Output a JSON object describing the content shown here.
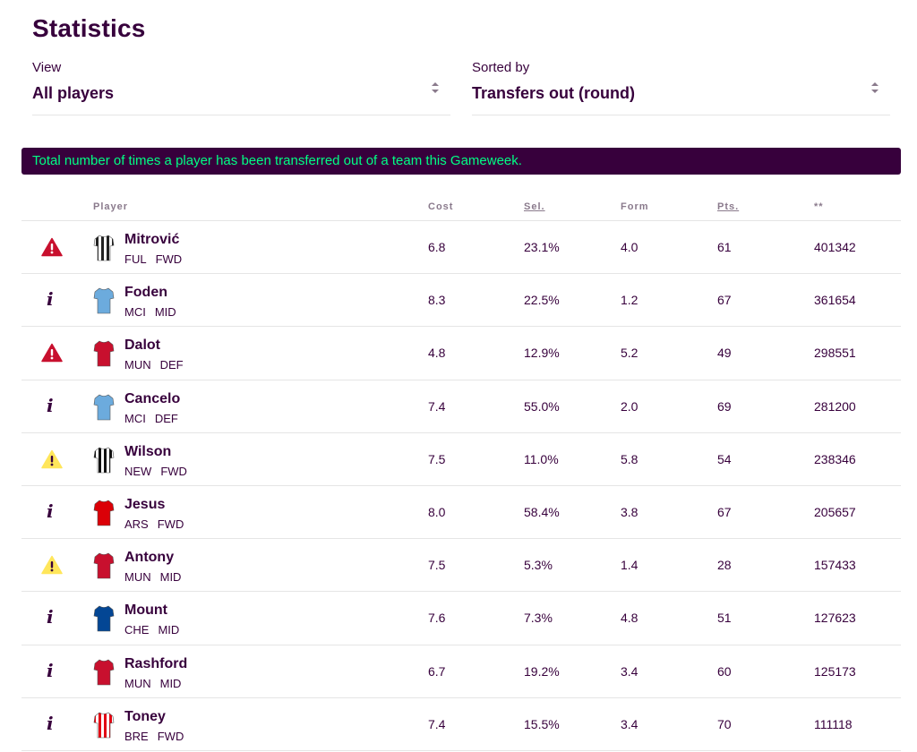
{
  "page": {
    "title": "Statistics"
  },
  "filters": {
    "view": {
      "label": "View",
      "value": "All players"
    },
    "sort": {
      "label": "Sorted by",
      "value": "Transfers out (round)"
    }
  },
  "banner": {
    "text": "Total number of times a player has been transferred out of a team this Gameweek."
  },
  "colors": {
    "brand": "#37003c",
    "accent": "#00ff85",
    "danger": "#c8102e",
    "warning": "#ffe65b"
  },
  "table": {
    "headers": {
      "player": "Player",
      "cost": "Cost",
      "sel": "Sel.",
      "form": "Form",
      "pts": "Pts.",
      "stat": "**"
    },
    "rows": [
      {
        "status": "danger",
        "status_icon": "warning-triangle-red-icon",
        "name": "Mitrović",
        "team": "FUL",
        "pos": "FWD",
        "cost": "6.8",
        "sel": "23.1%",
        "form": "4.0",
        "pts": "61",
        "stat": "401342",
        "shirt_main": "#ffffff",
        "shirt_alt": "#222222"
      },
      {
        "status": "info",
        "status_icon": "info-icon",
        "status_text": "i",
        "name": "Foden",
        "team": "MCI",
        "pos": "MID",
        "cost": "8.3",
        "sel": "22.5%",
        "form": "1.2",
        "pts": "67",
        "stat": "361654",
        "shirt_main": "#6cabdd",
        "shirt_alt": "#6cabdd"
      },
      {
        "status": "danger",
        "status_icon": "warning-triangle-red-icon",
        "name": "Dalot",
        "team": "MUN",
        "pos": "DEF",
        "cost": "4.8",
        "sel": "12.9%",
        "form": "5.2",
        "pts": "49",
        "stat": "298551",
        "shirt_main": "#c8102e",
        "shirt_alt": "#c8102e"
      },
      {
        "status": "info",
        "status_icon": "info-icon",
        "status_text": "i",
        "name": "Cancelo",
        "team": "MCI",
        "pos": "DEF",
        "cost": "7.4",
        "sel": "55.0%",
        "form": "2.0",
        "pts": "69",
        "stat": "281200",
        "shirt_main": "#6cabdd",
        "shirt_alt": "#6cabdd"
      },
      {
        "status": "warning",
        "status_icon": "warning-triangle-yellow-icon",
        "name": "Wilson",
        "team": "NEW",
        "pos": "FWD",
        "cost": "7.5",
        "sel": "11.0%",
        "form": "5.8",
        "pts": "54",
        "stat": "238346",
        "shirt_main": "#111111",
        "shirt_alt": "#ffffff"
      },
      {
        "status": "info",
        "status_icon": "info-icon",
        "status_text": "i",
        "name": "Jesus",
        "team": "ARS",
        "pos": "FWD",
        "cost": "8.0",
        "sel": "58.4%",
        "form": "3.8",
        "pts": "67",
        "stat": "205657",
        "shirt_main": "#db0007",
        "shirt_alt": "#db0007"
      },
      {
        "status": "warning",
        "status_icon": "warning-triangle-yellow-icon",
        "name": "Antony",
        "team": "MUN",
        "pos": "MID",
        "cost": "7.5",
        "sel": "5.3%",
        "form": "1.4",
        "pts": "28",
        "stat": "157433",
        "shirt_main": "#c8102e",
        "shirt_alt": "#c8102e"
      },
      {
        "status": "info",
        "status_icon": "info-icon",
        "status_text": "i",
        "name": "Mount",
        "team": "CHE",
        "pos": "MID",
        "cost": "7.6",
        "sel": "7.3%",
        "form": "4.8",
        "pts": "51",
        "stat": "127623",
        "shirt_main": "#034694",
        "shirt_alt": "#034694"
      },
      {
        "status": "info",
        "status_icon": "info-icon",
        "status_text": "i",
        "name": "Rashford",
        "team": "MUN",
        "pos": "MID",
        "cost": "6.7",
        "sel": "19.2%",
        "form": "3.4",
        "pts": "60",
        "stat": "125173",
        "shirt_main": "#c8102e",
        "shirt_alt": "#c8102e"
      },
      {
        "status": "info",
        "status_icon": "info-icon",
        "status_text": "i",
        "name": "Toney",
        "team": "BRE",
        "pos": "FWD",
        "cost": "7.4",
        "sel": "15.5%",
        "form": "3.4",
        "pts": "70",
        "stat": "111118",
        "shirt_main": "#e30613",
        "shirt_alt": "#ffffff"
      }
    ]
  }
}
